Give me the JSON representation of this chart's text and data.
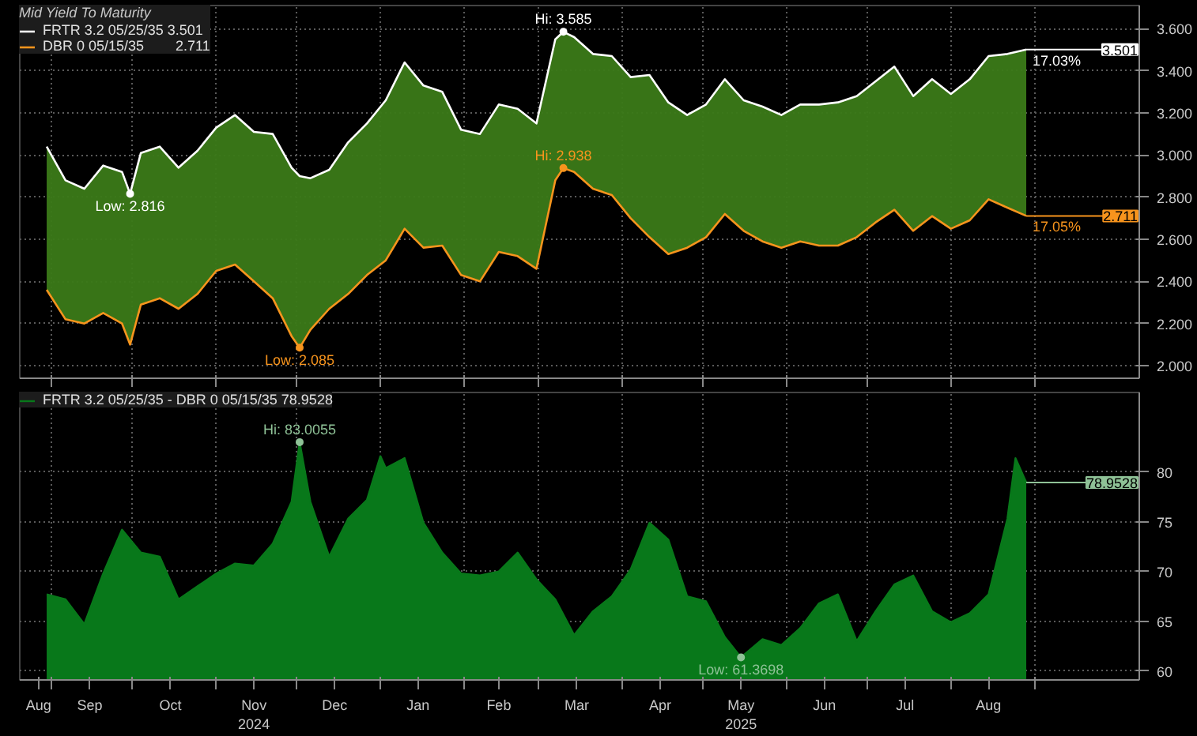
{
  "chart_data": [
    {
      "type": "line",
      "legend_title": "Mid Yield To Maturity",
      "legend": "top left",
      "grid": true,
      "tick_labels": "y",
      "xlim": [
        "2024-08-20",
        "2025-10-10"
      ],
      "ylim": [
        1.94,
        3.71
      ],
      "xticks": [
        {
          "value": "2024-09-01",
          "label": null
        },
        {
          "value": "2024-10-01",
          "label": null
        },
        {
          "value": "2024-11-01",
          "label": null
        },
        {
          "value": "2024-12-01",
          "label": null
        },
        {
          "value": "2025-01-01",
          "label": null
        },
        {
          "value": "2025-02-01",
          "label": null
        },
        {
          "value": "2025-03-01",
          "label": null
        },
        {
          "value": "2025-04-01",
          "label": null
        },
        {
          "value": "2025-05-01",
          "label": null
        },
        {
          "value": "2025-06-01",
          "label": null
        },
        {
          "value": "2025-07-01",
          "label": null
        },
        {
          "value": "2025-08-01",
          "label": null
        },
        {
          "value": "2025-09-01",
          "label": null
        }
      ],
      "yticks": [
        {
          "value": 2.0,
          "label": "2.000"
        },
        {
          "value": 2.2,
          "label": "2.200"
        },
        {
          "value": 2.4,
          "label": "2.400"
        },
        {
          "value": 2.6,
          "label": "2.600"
        },
        {
          "value": 2.8,
          "label": "2.800"
        },
        {
          "value": 3.0,
          "label": "3.000"
        },
        {
          "value": 3.2,
          "label": "3.200"
        },
        {
          "value": 3.4,
          "label": "3.400"
        },
        {
          "value": 3.6,
          "label": "3.600"
        }
      ],
      "x": [
        "2024-08-30",
        "2024-09-06",
        "2024-09-13",
        "2024-09-20",
        "2024-09-27",
        "2024-09-30",
        "2024-10-04",
        "2024-10-11",
        "2024-10-18",
        "2024-10-25",
        "2024-11-01",
        "2024-11-08",
        "2024-11-15",
        "2024-11-22",
        "2024-11-29",
        "2024-12-02",
        "2024-12-06",
        "2024-12-13",
        "2024-12-20",
        "2024-12-27",
        "2025-01-03",
        "2025-01-10",
        "2025-01-17",
        "2025-01-24",
        "2025-01-31",
        "2025-02-07",
        "2025-02-14",
        "2025-02-21",
        "2025-02-28",
        "2025-03-07",
        "2025-03-10",
        "2025-03-14",
        "2025-03-21",
        "2025-03-28",
        "2025-04-04",
        "2025-04-11",
        "2025-04-18",
        "2025-04-25",
        "2025-05-02",
        "2025-05-09",
        "2025-05-16",
        "2025-05-23",
        "2025-05-30",
        "2025-06-06",
        "2025-06-13",
        "2025-06-20",
        "2025-06-27",
        "2025-07-04",
        "2025-07-11",
        "2025-07-18",
        "2025-07-25",
        "2025-08-01",
        "2025-08-08",
        "2025-08-15",
        "2025-08-22",
        "2025-08-29"
      ],
      "series": [
        {
          "name": "FRTR 3.2 05/25/35 3.501",
          "color": "#ffffff",
          "values": [
            3.04,
            2.88,
            2.84,
            2.95,
            2.92,
            2.816,
            3.01,
            3.04,
            2.94,
            3.02,
            3.13,
            3.19,
            3.11,
            3.1,
            2.94,
            2.9,
            2.89,
            2.93,
            3.06,
            3.15,
            3.26,
            3.44,
            3.33,
            3.3,
            3.12,
            3.1,
            3.24,
            3.22,
            3.15,
            3.55,
            3.585,
            3.56,
            3.48,
            3.47,
            3.37,
            3.38,
            3.25,
            3.19,
            3.24,
            3.36,
            3.26,
            3.23,
            3.19,
            3.24,
            3.24,
            3.25,
            3.28,
            3.35,
            3.42,
            3.28,
            3.36,
            3.29,
            3.36,
            3.47,
            3.48,
            3.501
          ],
          "upper": [
            3.04,
            2.88,
            2.84,
            2.95,
            2.92,
            2.816,
            3.01,
            3.04,
            2.94,
            3.02,
            3.13,
            3.19,
            3.11,
            3.1,
            2.94,
            2.9,
            2.89,
            2.93,
            3.06,
            3.15,
            3.26,
            3.44,
            3.33,
            3.3,
            3.12,
            3.1,
            3.24,
            3.22,
            3.15,
            3.55,
            3.585,
            3.56,
            3.48,
            3.47,
            3.37,
            3.38,
            3.25,
            3.19,
            3.24,
            3.36,
            3.26,
            3.23,
            3.19,
            3.24,
            3.24,
            3.25,
            3.28,
            3.35,
            3.42,
            3.28,
            3.36,
            3.29,
            3.36,
            3.47,
            3.48,
            3.501
          ],
          "lower": [
            2.36,
            2.22,
            2.2,
            2.25,
            2.2,
            2.1,
            2.29,
            2.32,
            2.27,
            2.34,
            2.45,
            2.48,
            2.4,
            2.32,
            2.14,
            2.085,
            2.17,
            2.27,
            2.34,
            2.43,
            2.5,
            2.65,
            2.56,
            2.57,
            2.43,
            2.4,
            2.54,
            2.52,
            2.46,
            2.88,
            2.938,
            2.92,
            2.84,
            2.81,
            2.7,
            2.61,
            2.53,
            2.56,
            2.61,
            2.72,
            2.64,
            2.59,
            2.56,
            2.59,
            2.57,
            2.57,
            2.61,
            2.68,
            2.74,
            2.64,
            2.71,
            2.65,
            2.69,
            2.79,
            2.75,
            2.711
          ]
        },
        {
          "name": "DBR 0 05/15/35        2.711",
          "color": "#f7941d",
          "values": [
            2.36,
            2.22,
            2.2,
            2.25,
            2.2,
            2.1,
            2.29,
            2.32,
            2.27,
            2.34,
            2.45,
            2.48,
            2.4,
            2.32,
            2.14,
            2.085,
            2.17,
            2.27,
            2.34,
            2.43,
            2.5,
            2.65,
            2.56,
            2.57,
            2.43,
            2.4,
            2.54,
            2.52,
            2.46,
            2.88,
            2.938,
            2.92,
            2.84,
            2.81,
            2.7,
            2.61,
            2.53,
            2.56,
            2.61,
            2.72,
            2.64,
            2.59,
            2.56,
            2.59,
            2.57,
            2.57,
            2.61,
            2.68,
            2.74,
            2.64,
            2.71,
            2.65,
            2.69,
            2.79,
            2.75,
            2.711
          ]
        }
      ],
      "annotations": [
        {
          "text": "Low: 2.816",
          "x": "2024-09-30",
          "y": 2.816
        },
        {
          "text": "Hi: 3.585",
          "x": "2025-03-10",
          "y": 3.585
        },
        {
          "text": "Hi: 2.938",
          "x": "2025-03-10",
          "y": 2.938
        },
        {
          "text": "Low: 2.085",
          "x": "2024-12-02",
          "y": 2.085
        },
        {
          "text": "17.03%",
          "x": "2025-08-29",
          "y": 3.501
        },
        {
          "text": "3.501",
          "x": "2025-08-29",
          "y": 3.501
        },
        {
          "text": "17.05%",
          "x": "2025-08-29",
          "y": 2.711
        },
        {
          "text": "2.711",
          "x": "2025-08-29",
          "y": 2.711
        }
      ]
    },
    {
      "type": "area",
      "legend": "top left",
      "grid": true,
      "xlim": [
        "2024-08-20",
        "2025-10-10"
      ],
      "ylim": [
        59.1,
        88
      ],
      "xticks": [
        {
          "value": "2024-08-27",
          "label": "Aug"
        },
        {
          "value": "2024-09-01",
          "label": null
        },
        {
          "value": "2024-09-15",
          "label": "Sep"
        },
        {
          "value": "2024-10-01",
          "label": null
        },
        {
          "value": "2024-10-15",
          "label": "Oct"
        },
        {
          "value": "2024-11-01",
          "label": null
        },
        {
          "value": "2024-11-15",
          "label": "Nov\n2024"
        },
        {
          "value": "2024-12-01",
          "label": null
        },
        {
          "value": "2024-12-15",
          "label": "Dec"
        },
        {
          "value": "2025-01-01",
          "label": null
        },
        {
          "value": "2025-01-15",
          "label": "Jan"
        },
        {
          "value": "2025-02-01",
          "label": null
        },
        {
          "value": "2025-02-14",
          "label": "Feb"
        },
        {
          "value": "2025-03-01",
          "label": null
        },
        {
          "value": "2025-03-15",
          "label": "Mar"
        },
        {
          "value": "2025-04-01",
          "label": null
        },
        {
          "value": "2025-04-15",
          "label": "Apr"
        },
        {
          "value": "2025-05-01",
          "label": null
        },
        {
          "value": "2025-05-15",
          "label": "May\n2025"
        },
        {
          "value": "2025-06-01",
          "label": null
        },
        {
          "value": "2025-06-15",
          "label": "Jun"
        },
        {
          "value": "2025-07-01",
          "label": null
        },
        {
          "value": "2025-07-15",
          "label": "Jul"
        },
        {
          "value": "2025-08-01",
          "label": null
        },
        {
          "value": "2025-08-15",
          "label": "Aug"
        },
        {
          "value": "2025-09-01",
          "label": null
        }
      ],
      "yticks": [
        60,
        65,
        70,
        75,
        80
      ],
      "x": [
        "2024-08-30",
        "2024-09-06",
        "2024-09-13",
        "2024-09-20",
        "2024-09-27",
        "2024-10-04",
        "2024-10-11",
        "2024-10-18",
        "2024-10-25",
        "2024-11-01",
        "2024-11-08",
        "2024-11-15",
        "2024-11-22",
        "2024-11-29",
        "2024-12-02",
        "2024-12-06",
        "2024-12-13",
        "2024-12-20",
        "2024-12-27",
        "2025-01-01",
        "2025-01-03",
        "2025-01-10",
        "2025-01-17",
        "2025-01-24",
        "2025-01-31",
        "2025-02-07",
        "2025-02-14",
        "2025-02-21",
        "2025-02-28",
        "2025-03-07",
        "2025-03-14",
        "2025-03-21",
        "2025-03-28",
        "2025-04-04",
        "2025-04-11",
        "2025-04-18",
        "2025-04-25",
        "2025-05-02",
        "2025-05-09",
        "2025-05-15",
        "2025-05-23",
        "2025-05-30",
        "2025-06-06",
        "2025-06-13",
        "2025-06-20",
        "2025-06-27",
        "2025-07-04",
        "2025-07-11",
        "2025-07-18",
        "2025-07-25",
        "2025-08-01",
        "2025-08-08",
        "2025-08-15",
        "2025-08-22",
        "2025-08-25",
        "2025-08-29"
      ],
      "series": [
        {
          "name": "FRTR 3.2 05/25/35 - DBR 0 05/15/35 78.9528",
          "color": "#08781a",
          "values": [
            67.7,
            67.2,
            64.7,
            69.8,
            74.2,
            71.9,
            71.5,
            67.2,
            68.5,
            69.8,
            70.8,
            70.6,
            72.8,
            77.0,
            83.0055,
            77.0,
            71.5,
            75.3,
            77.2,
            81.6,
            80.4,
            81.4,
            74.9,
            71.9,
            69.8,
            69.6,
            70.0,
            71.9,
            69.2,
            67.2,
            63.6,
            66.0,
            67.5,
            70.2,
            74.9,
            73.2,
            67.5,
            67.0,
            63.4,
            61.3698,
            63.2,
            62.6,
            64.3,
            66.8,
            67.7,
            63.0,
            66.0,
            68.7,
            69.6,
            66.0,
            64.9,
            65.8,
            67.7,
            75.3,
            81.4,
            78.9528
          ]
        }
      ],
      "annotations": [
        {
          "text": "Hi: 83.0055",
          "x": "2024-12-02",
          "y": 83.0055
        },
        {
          "text": "Low: 61.3698",
          "x": "2025-05-15",
          "y": 61.3698
        },
        {
          "text": "78.9528",
          "x": "2025-08-29",
          "y": 78.9528
        }
      ]
    }
  ]
}
